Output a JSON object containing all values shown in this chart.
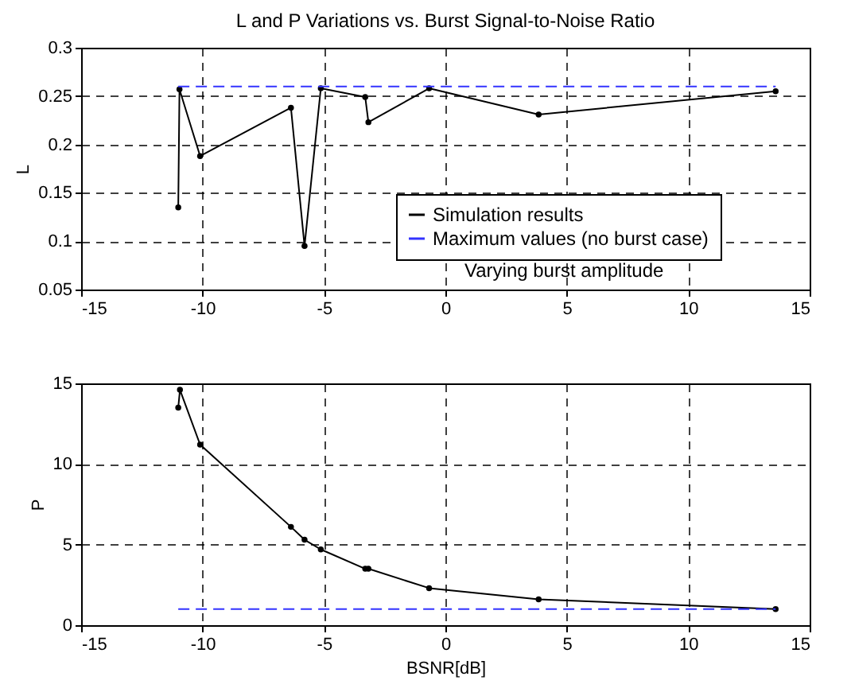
{
  "chart_data": [
    {
      "type": "line",
      "title": "L and P Variations vs. Burst Signal-to-Noise Ratio",
      "ylabel": "L",
      "x": [
        -11,
        -10.95,
        -10.1,
        -6.36,
        -5.8,
        -5.13,
        -3.3,
        -3.17,
        -0.67,
        3.84,
        13.6
      ],
      "series": [
        {
          "name": "Simulation results",
          "color": "#000000",
          "marker": "circle",
          "line_style": "solid",
          "values": [
            0.135,
            0.257,
            0.188,
            0.238,
            0.095,
            0.258,
            0.249,
            0.223,
            0.258,
            0.231,
            0.255
          ]
        },
        {
          "name": "Maximum values (no burst case)",
          "color": "#3333ff",
          "marker": "none",
          "line_style": "dashed",
          "values": [
            0.26,
            0.26,
            0.26,
            0.26,
            0.26,
            0.26,
            0.26,
            0.26,
            0.26,
            0.26,
            0.26
          ]
        }
      ],
      "annotations": [
        "Varying burst amplitude"
      ],
      "xlim": [
        -15,
        15
      ],
      "xticks": [
        -15,
        -10,
        -5,
        0,
        5,
        10,
        15
      ],
      "ylim": [
        0.05,
        0.3
      ],
      "yticks": [
        0.05,
        0.1,
        0.15,
        0.2,
        0.25,
        0.3
      ],
      "grid": true,
      "legend": "bottom right"
    },
    {
      "type": "line",
      "xlabel": "BSNR[dB]",
      "ylabel": "P",
      "x": [
        -11,
        -10.93,
        -10.1,
        -6.36,
        -5.8,
        -5.13,
        -3.3,
        -3.17,
        -0.67,
        3.84,
        13.6
      ],
      "series": [
        {
          "color": "#000000",
          "marker": "circle",
          "line_style": "solid",
          "values": [
            13.5,
            14.6,
            11.2,
            6.1,
            5.3,
            4.7,
            3.5,
            3.5,
            2.3,
            1.6,
            1.0
          ]
        },
        {
          "color": "#3333ff",
          "marker": "none",
          "line_style": "dashed",
          "values": [
            1,
            1,
            1,
            1,
            1,
            1,
            1,
            1,
            1,
            1,
            1
          ]
        }
      ],
      "xlim": [
        -15,
        15
      ],
      "xticks": [
        -15,
        -10,
        -5,
        0,
        5,
        10,
        15
      ],
      "ylim": [
        0,
        15
      ],
      "yticks": [
        0,
        5,
        10,
        15
      ],
      "grid": true,
      "legend": false
    }
  ]
}
